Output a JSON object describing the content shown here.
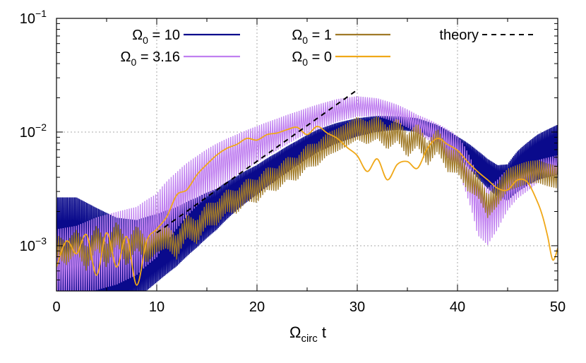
{
  "chart_data": {
    "type": "line",
    "xlabel": "Ω",
    "xlabel_sub": "circ",
    "xlabel_suffix": " t",
    "ylabel": "",
    "xlim": [
      0,
      50
    ],
    "ylim": [
      0.0004,
      0.1
    ],
    "y_scale": "log",
    "grid": true,
    "legend_placement": "top",
    "x_ticks": [
      {
        "value": 0,
        "label": "0"
      },
      {
        "value": 10,
        "label": "10"
      },
      {
        "value": 20,
        "label": "20"
      },
      {
        "value": 30,
        "label": "30"
      },
      {
        "value": 40,
        "label": "40"
      },
      {
        "value": 50,
        "label": "50"
      }
    ],
    "y_ticks": [
      {
        "value": 0.001,
        "base": "10",
        "exp": "−3"
      },
      {
        "value": 0.01,
        "base": "10",
        "exp": "−2"
      },
      {
        "value": 0.1,
        "base": "10",
        "exp": "−1"
      }
    ],
    "series": [
      {
        "name": "Ω",
        "name_sub": "0",
        "name_value": " = 10",
        "color": "#0a0a8c",
        "x": [
          0,
          2,
          4,
          6,
          8,
          10,
          12,
          14,
          16,
          18,
          20,
          22,
          24,
          26,
          28,
          30,
          32,
          34,
          36,
          38,
          40,
          42,
          43,
          44,
          45,
          46,
          48,
          50
        ],
        "y": [
          0.0007,
          0.0007,
          0.00068,
          0.00067,
          0.00075,
          0.00095,
          0.0012,
          0.0016,
          0.0021,
          0.0029,
          0.0038,
          0.005,
          0.0065,
          0.0083,
          0.0098,
          0.011,
          0.0118,
          0.012,
          0.0115,
          0.0098,
          0.0074,
          0.0052,
          0.0043,
          0.0037,
          0.0036,
          0.0045,
          0.006,
          0.007
        ],
        "band": [
          0.58,
          0.58,
          0.5,
          0.42,
          0.35,
          0.3,
          0.26,
          0.22,
          0.18,
          0.15,
          0.13,
          0.12,
          0.11,
          0.1,
          0.09,
          0.08,
          0.07,
          0.06,
          0.06,
          0.07,
          0.09,
          0.12,
          0.13,
          0.14,
          0.16,
          0.18,
          0.2,
          0.22
        ]
      },
      {
        "name": "Ω",
        "name_sub": "0",
        "name_value": " = 3.16",
        "color": "#c080f0",
        "x": [
          0,
          2,
          4,
          6,
          8,
          10,
          12,
          14,
          16,
          18,
          20,
          22,
          24,
          26,
          28,
          30,
          32,
          34,
          36,
          38,
          40,
          41,
          42,
          43,
          44,
          45,
          46,
          47,
          48,
          50
        ],
        "y": [
          0.0007,
          0.00075,
          0.00085,
          0.00095,
          0.0011,
          0.0015,
          0.0025,
          0.0037,
          0.005,
          0.0063,
          0.0078,
          0.0095,
          0.0115,
          0.0135,
          0.0155,
          0.0168,
          0.0165,
          0.0145,
          0.0118,
          0.0094,
          0.0065,
          0.0042,
          0.0022,
          0.0018,
          0.0023,
          0.0031,
          0.0036,
          0.004,
          0.0045,
          0.0052
        ],
        "band": [
          0.3,
          0.3,
          0.32,
          0.32,
          0.3,
          0.28,
          0.25,
          0.22,
          0.2,
          0.18,
          0.16,
          0.14,
          0.12,
          0.11,
          0.1,
          0.09,
          0.08,
          0.08,
          0.08,
          0.1,
          0.15,
          0.2,
          0.25,
          0.25,
          0.22,
          0.18,
          0.14,
          0.12,
          0.1,
          0.08
        ]
      },
      {
        "name": "Ω",
        "name_sub": "0",
        "name_value": " = 1",
        "color": "#a07a28",
        "x": [
          0,
          1,
          2,
          3,
          4,
          5,
          6,
          7,
          8,
          9,
          10,
          11,
          12,
          13,
          14,
          15,
          16,
          17,
          18,
          19,
          20,
          21,
          22,
          23,
          24,
          25,
          26,
          27,
          28,
          29,
          30,
          31,
          32,
          33,
          34,
          35,
          36,
          37,
          38,
          39,
          40,
          41,
          42,
          43,
          44,
          45,
          46,
          47,
          48,
          49,
          50
        ],
        "y": [
          0.001,
          0.00085,
          0.0011,
          0.00075,
          0.0012,
          0.0008,
          0.0013,
          0.00082,
          0.0012,
          0.00088,
          0.0011,
          0.0012,
          0.00095,
          0.0015,
          0.0013,
          0.0019,
          0.0019,
          0.0025,
          0.0024,
          0.0031,
          0.003,
          0.0039,
          0.0038,
          0.0048,
          0.0047,
          0.0062,
          0.0063,
          0.0078,
          0.0085,
          0.0095,
          0.0108,
          0.0098,
          0.011,
          0.0088,
          0.0105,
          0.0075,
          0.0095,
          0.0063,
          0.0085,
          0.0056,
          0.0055,
          0.0038,
          0.0034,
          0.0022,
          0.0028,
          0.0038,
          0.0041,
          0.0044,
          0.0045,
          0.0042,
          0.004
        ],
        "band": [
          0.1,
          0.1,
          0.1,
          0.1,
          0.1,
          0.1,
          0.1,
          0.1,
          0.1,
          0.1,
          0.1,
          0.1,
          0.1,
          0.1,
          0.1,
          0.1,
          0.1,
          0.1,
          0.1,
          0.1,
          0.1,
          0.1,
          0.1,
          0.1,
          0.1,
          0.1,
          0.1,
          0.1,
          0.1,
          0.1,
          0.1,
          0.1,
          0.1,
          0.1,
          0.1,
          0.1,
          0.1,
          0.1,
          0.1,
          0.1,
          0.1,
          0.1,
          0.1,
          0.1,
          0.1,
          0.1,
          0.1,
          0.1,
          0.1,
          0.1,
          0.1
        ]
      },
      {
        "name": "Ω",
        "name_sub": "0",
        "name_value": " = 0",
        "color": "#f0a818",
        "x": [
          0,
          1,
          2,
          3,
          4,
          5,
          6,
          7,
          8,
          9,
          10,
          11,
          12,
          13,
          14,
          15,
          16,
          17,
          18,
          19,
          20,
          21,
          22,
          23,
          24,
          25,
          26,
          27,
          28,
          29,
          30,
          31,
          32,
          33,
          34,
          35,
          36,
          37,
          38,
          39,
          40,
          41,
          42,
          43,
          44,
          45,
          46,
          47,
          48,
          48.5,
          49,
          49.5,
          50
        ],
        "y": [
          0.00065,
          0.0011,
          0.00085,
          0.00125,
          0.00055,
          0.0013,
          0.00065,
          0.0012,
          0.00045,
          0.0011,
          0.0014,
          0.0018,
          0.0028,
          0.0031,
          0.0042,
          0.0052,
          0.0063,
          0.0072,
          0.0078,
          0.0088,
          0.0085,
          0.0095,
          0.0098,
          0.0105,
          0.011,
          0.0095,
          0.0112,
          0.0098,
          0.0088,
          0.0073,
          0.0062,
          0.0045,
          0.0058,
          0.0038,
          0.0052,
          0.0055,
          0.0048,
          0.0072,
          0.0088,
          0.0078,
          0.0069,
          0.0055,
          0.0045,
          0.0038,
          0.0032,
          0.0031,
          0.0038,
          0.0036,
          0.0024,
          0.0018,
          0.0012,
          0.00075,
          0.00095
        ]
      },
      {
        "name": "theory",
        "color": "#000000",
        "dashed": true,
        "x": [
          10,
          30
        ],
        "y": [
          0.0013,
          0.0235
        ]
      }
    ]
  }
}
